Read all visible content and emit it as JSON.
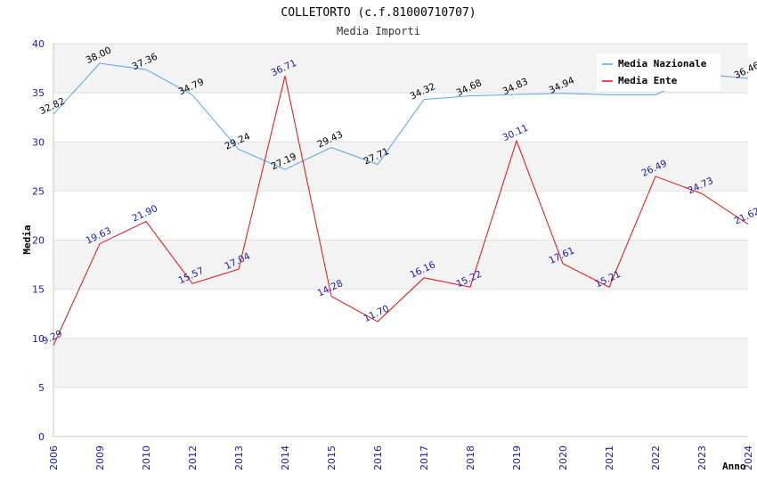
{
  "chart_data": {
    "type": "line",
    "title": "COLLETORTO (c.f.81000710707)",
    "subtitle": "Media Importi",
    "xlabel": "Anno",
    "ylabel": "Media",
    "ylim": [
      0,
      40
    ],
    "yticks": [
      0,
      5,
      10,
      15,
      20,
      25,
      30,
      35,
      40
    ],
    "grid": true,
    "legend_position": "top-right",
    "categories": [
      "2006",
      "2009",
      "2010",
      "2012",
      "2013",
      "2014",
      "2015",
      "2016",
      "2017",
      "2018",
      "2019",
      "2020",
      "2021",
      "2022",
      "2023",
      "2024"
    ],
    "series": [
      {
        "name": "Media Nazionale",
        "color": "#5aa5e6",
        "values": [
          32.82,
          38.0,
          37.36,
          34.79,
          29.24,
          27.19,
          29.43,
          27.71,
          34.32,
          34.68,
          34.83,
          34.94,
          34.8,
          34.8,
          36.9,
          36.46
        ],
        "labels": [
          "32.82",
          "38.00",
          "37.36",
          "34.79",
          "29.24",
          "27.19",
          "29.43",
          "27.71",
          "34.32",
          "34.68",
          "34.83",
          "34.94",
          "",
          "",
          "",
          "36.46"
        ]
      },
      {
        "name": "Media Ente",
        "color": "#e01010",
        "values": [
          9.29,
          19.63,
          21.9,
          15.57,
          17.04,
          36.71,
          14.28,
          11.7,
          16.16,
          15.22,
          30.11,
          17.61,
          15.21,
          26.49,
          24.73,
          21.62
        ],
        "labels": [
          "9.29",
          "19.63",
          "21.90",
          "15.57",
          "17.04",
          "36.71",
          "14.28",
          "11.70",
          "16.16",
          "15.22",
          "30.11",
          "17.61",
          "15.21",
          "26.49",
          "24.73",
          "21.62"
        ]
      }
    ]
  }
}
